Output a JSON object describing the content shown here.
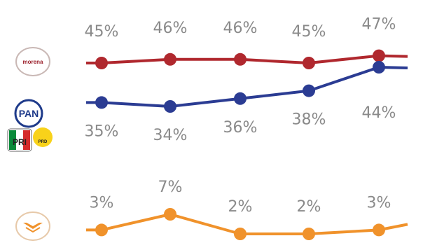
{
  "chart_data": {
    "type": "line",
    "x": [
      "1",
      "2",
      "3",
      "4",
      "5"
    ],
    "ylim": [
      0,
      50
    ],
    "grid": false,
    "legend": "left",
    "series": [
      {
        "name": "morena",
        "color": "#b0282e",
        "icon": "morena-logo-icon",
        "values": [
          45,
          46,
          46,
          45,
          47
        ],
        "labels": [
          "45%",
          "46%",
          "46%",
          "45%",
          "47%"
        ]
      },
      {
        "name": "PAN",
        "name2": "PRI",
        "name3": "PRD",
        "color": "#2b3c93",
        "icon": "pan-pri-prd-logos-icon",
        "values": [
          35,
          34,
          36,
          38,
          44
        ],
        "labels": [
          "35%",
          "34%",
          "36%",
          "38%",
          "44%"
        ]
      },
      {
        "name": "",
        "color": "#f0922b",
        "icon": "movimiento-ciudadano-logo-icon",
        "values": [
          3,
          7,
          2,
          2,
          3
        ],
        "labels": [
          "3%",
          "7%",
          "2%",
          "2%",
          "3%"
        ]
      }
    ]
  }
}
